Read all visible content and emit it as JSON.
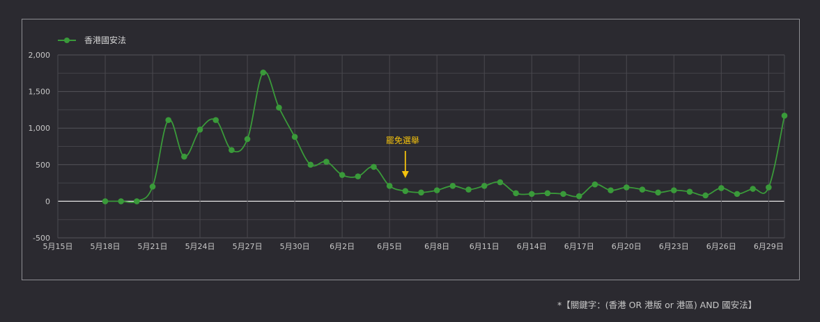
{
  "chart_data": {
    "type": "line",
    "legend": {
      "position": "top-left",
      "entries": [
        "香港國安法"
      ]
    },
    "series": [
      {
        "name": "香港國安法",
        "color": "#3a9a3a",
        "x": [
          "5月18日",
          "5月19日",
          "5月20日",
          "5月21日",
          "5月22日",
          "5月23日",
          "5月24日",
          "5月25日",
          "5月26日",
          "5月27日",
          "5月28日",
          "5月29日",
          "5月30日",
          "5月31日",
          "6月1日",
          "6月2日",
          "6月3日",
          "6月4日",
          "6月5日",
          "6月6日",
          "6月7日",
          "6月8日",
          "6月9日",
          "6月10日",
          "6月11日",
          "6月12日",
          "6月13日",
          "6月14日",
          "6月15日",
          "6月16日",
          "6月17日",
          "6月18日",
          "6月19日",
          "6月20日",
          "6月21日",
          "6月22日",
          "6月23日",
          "6月24日",
          "6月25日",
          "6月26日",
          "6月27日",
          "6月28日",
          "6月29日",
          "6月30日"
        ],
        "values": [
          0,
          0,
          0,
          200,
          1110,
          610,
          980,
          1110,
          700,
          850,
          1760,
          1280,
          880,
          500,
          540,
          360,
          340,
          470,
          210,
          140,
          120,
          150,
          210,
          160,
          210,
          260,
          110,
          100,
          110,
          100,
          70,
          230,
          150,
          190,
          160,
          120,
          150,
          130,
          80,
          180,
          100,
          170,
          190,
          1170
        ]
      }
    ],
    "x_ticks": [
      "5月15日",
      "5月18日",
      "5月21日",
      "5月24日",
      "5月27日",
      "5月30日",
      "6月2日",
      "6月5日",
      "6月8日",
      "6月11日",
      "6月14日",
      "6月17日",
      "6月20日",
      "6月23日",
      "6月26日",
      "6月29日"
    ],
    "y_ticks": [
      "-500",
      "0",
      "500",
      "1,000",
      "1,500",
      "2,000"
    ],
    "ylim": [
      -500,
      2000
    ],
    "grid": true,
    "annotations": [
      {
        "text": "罷免選舉",
        "x": "6月6日",
        "color": "#f4c20d"
      }
    ]
  },
  "footnote": "*【關鍵字：(香港 OR 港版 or 港區) AND 國安法】"
}
